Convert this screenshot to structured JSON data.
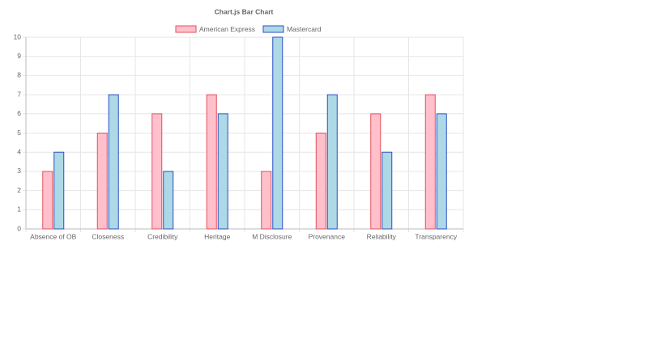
{
  "chart_data": {
    "type": "bar",
    "title": "Chart.js Bar Chart",
    "categories": [
      "Absence of OB",
      "Closeness",
      "Credibility",
      "Heritage",
      "M Disclosure",
      "Provenance",
      "Reliability",
      "Transparency"
    ],
    "series": [
      {
        "name": "American Express",
        "color": "#ffc0cb",
        "border_color": "#e0505e",
        "values": [
          3,
          5,
          6,
          7,
          3,
          5,
          6,
          7
        ]
      },
      {
        "name": "Mastercard",
        "color": "#add8e6",
        "border_color": "#2b4fc4",
        "values": [
          4,
          7,
          3,
          6,
          10,
          7,
          4,
          6
        ]
      }
    ],
    "ylim": [
      0,
      10
    ],
    "yticks": [
      0,
      1,
      2,
      3,
      4,
      5,
      6,
      7,
      8,
      9,
      10
    ],
    "grid": true,
    "legend": "top"
  }
}
